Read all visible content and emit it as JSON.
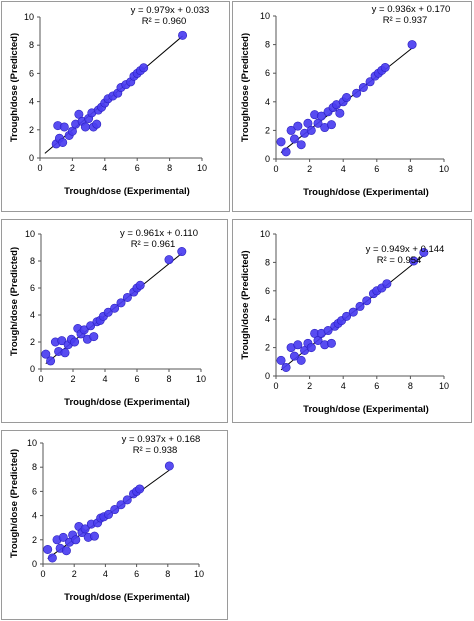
{
  "colors": {
    "point": "#4a3df0",
    "point_stroke": "#2a1fc0",
    "line": "#000000",
    "axis": "#555555"
  },
  "chart_data": [
    {
      "type": "scatter",
      "xlabel": "Trough/dose (Experimental)",
      "ylabel": "Trough/dose (Predicted)",
      "xlim": [
        0,
        10
      ],
      "ylim": [
        0,
        10
      ],
      "xticks": [
        "0",
        "2",
        "4",
        "6",
        "8",
        "10"
      ],
      "yticks": [
        "0",
        "2",
        "4",
        "6",
        "8",
        "10"
      ],
      "equation": "y = 0.979x + 0.033",
      "r2": "R² = 0.960",
      "fit": {
        "slope": 0.979,
        "intercept": 0.033
      },
      "points": [
        [
          1.0,
          1.0
        ],
        [
          1.2,
          1.4
        ],
        [
          1.1,
          2.3
        ],
        [
          1.5,
          2.2
        ],
        [
          1.4,
          1.1
        ],
        [
          1.8,
          1.6
        ],
        [
          2.0,
          1.9
        ],
        [
          2.2,
          2.4
        ],
        [
          2.4,
          3.1
        ],
        [
          2.6,
          2.6
        ],
        [
          2.8,
          2.2
        ],
        [
          3.0,
          2.8
        ],
        [
          3.2,
          3.2
        ],
        [
          3.3,
          2.2
        ],
        [
          3.5,
          2.4
        ],
        [
          3.6,
          3.4
        ],
        [
          3.8,
          3.6
        ],
        [
          4.0,
          3.9
        ],
        [
          4.2,
          4.2
        ],
        [
          4.5,
          4.4
        ],
        [
          4.8,
          4.6
        ],
        [
          5.0,
          5.0
        ],
        [
          5.3,
          5.2
        ],
        [
          5.6,
          5.4
        ],
        [
          5.8,
          5.8
        ],
        [
          6.0,
          6.0
        ],
        [
          6.2,
          6.2
        ],
        [
          6.4,
          6.4
        ],
        [
          8.8,
          8.7
        ]
      ]
    },
    {
      "type": "scatter",
      "xlabel": "Trough/dose (Experimental)",
      "ylabel": "Trough/dose (Predicted)",
      "xlim": [
        0,
        10
      ],
      "ylim": [
        0,
        10
      ],
      "xticks": [
        "0",
        "2",
        "4",
        "6",
        "8",
        "10"
      ],
      "yticks": [
        "0",
        "2",
        "4",
        "6",
        "8",
        "10"
      ],
      "equation": "y = 0.936x + 0.170",
      "r2": "R² = 0.937",
      "fit": {
        "slope": 0.936,
        "intercept": 0.17
      },
      "points": [
        [
          0.3,
          1.2
        ],
        [
          0.6,
          0.5
        ],
        [
          0.9,
          2.0
        ],
        [
          1.1,
          1.4
        ],
        [
          1.3,
          2.3
        ],
        [
          1.5,
          1.0
        ],
        [
          1.7,
          1.8
        ],
        [
          1.9,
          2.5
        ],
        [
          2.1,
          2.0
        ],
        [
          2.3,
          3.1
        ],
        [
          2.5,
          2.5
        ],
        [
          2.7,
          3.0
        ],
        [
          2.9,
          2.2
        ],
        [
          3.1,
          3.3
        ],
        [
          3.3,
          2.4
        ],
        [
          3.4,
          3.6
        ],
        [
          3.6,
          3.8
        ],
        [
          3.8,
          3.2
        ],
        [
          4.0,
          4.0
        ],
        [
          4.2,
          4.3
        ],
        [
          4.8,
          4.6
        ],
        [
          5.2,
          5.0
        ],
        [
          5.6,
          5.4
        ],
        [
          5.9,
          5.8
        ],
        [
          6.1,
          6.0
        ],
        [
          6.3,
          6.2
        ],
        [
          6.5,
          6.4
        ],
        [
          8.1,
          8.0
        ]
      ]
    },
    {
      "type": "scatter",
      "xlabel": "Trough/dose (Experimental)",
      "ylabel": "Trough/dose (Predicted)",
      "xlim": [
        0,
        10
      ],
      "ylim": [
        0,
        10
      ],
      "xticks": [
        "0",
        "2",
        "4",
        "6",
        "8",
        "10"
      ],
      "yticks": [
        "0",
        "2",
        "4",
        "6",
        "8",
        "10"
      ],
      "equation": "y = 0.961x + 0.110",
      "r2": "R² = 0.961",
      "fit": {
        "slope": 0.961,
        "intercept": 0.11
      },
      "points": [
        [
          0.3,
          1.1
        ],
        [
          0.6,
          0.6
        ],
        [
          0.9,
          2.0
        ],
        [
          1.1,
          1.3
        ],
        [
          1.3,
          2.1
        ],
        [
          1.5,
          1.2
        ],
        [
          1.7,
          1.8
        ],
        [
          1.9,
          2.2
        ],
        [
          2.1,
          2.0
        ],
        [
          2.3,
          3.0
        ],
        [
          2.5,
          2.6
        ],
        [
          2.7,
          2.9
        ],
        [
          2.9,
          2.2
        ],
        [
          3.1,
          3.2
        ],
        [
          3.3,
          2.4
        ],
        [
          3.5,
          3.5
        ],
        [
          3.7,
          3.6
        ],
        [
          3.9,
          3.9
        ],
        [
          4.2,
          4.2
        ],
        [
          4.6,
          4.5
        ],
        [
          5.0,
          4.9
        ],
        [
          5.4,
          5.3
        ],
        [
          5.8,
          5.7
        ],
        [
          6.0,
          6.0
        ],
        [
          6.2,
          6.2
        ],
        [
          8.0,
          8.1
        ],
        [
          8.8,
          8.7
        ]
      ]
    },
    {
      "type": "scatter",
      "xlabel": "Trough/dose (Experimental)",
      "ylabel": "Trough/dose (Predicted)",
      "xlim": [
        0,
        10
      ],
      "ylim": [
        0,
        10
      ],
      "xticks": [
        "0",
        "2",
        "4",
        "6",
        "8",
        "10"
      ],
      "yticks": [
        "0",
        "2",
        "4",
        "6",
        "8",
        "10"
      ],
      "equation": "y = 0.949x + 0.144",
      "r2": "R² = 0.954",
      "fit": {
        "slope": 0.949,
        "intercept": 0.144
      },
      "points": [
        [
          0.3,
          1.1
        ],
        [
          0.6,
          0.6
        ],
        [
          0.9,
          2.0
        ],
        [
          1.1,
          1.4
        ],
        [
          1.3,
          2.2
        ],
        [
          1.5,
          1.1
        ],
        [
          1.7,
          1.8
        ],
        [
          1.9,
          2.3
        ],
        [
          2.1,
          2.0
        ],
        [
          2.3,
          3.0
        ],
        [
          2.5,
          2.5
        ],
        [
          2.7,
          3.0
        ],
        [
          2.9,
          2.2
        ],
        [
          3.1,
          3.2
        ],
        [
          3.3,
          2.3
        ],
        [
          3.5,
          3.5
        ],
        [
          3.7,
          3.7
        ],
        [
          3.9,
          3.9
        ],
        [
          4.2,
          4.2
        ],
        [
          4.6,
          4.5
        ],
        [
          5.0,
          4.9
        ],
        [
          5.4,
          5.3
        ],
        [
          5.8,
          5.8
        ],
        [
          6.0,
          6.0
        ],
        [
          6.3,
          6.2
        ],
        [
          6.6,
          6.5
        ],
        [
          8.2,
          8.1
        ],
        [
          8.8,
          8.7
        ]
      ]
    },
    {
      "type": "scatter",
      "xlabel": "Trough/dose (Experimental)",
      "ylabel": "Trough/dose (Predicted)",
      "xlim": [
        0,
        10
      ],
      "ylim": [
        0,
        10
      ],
      "xticks": [
        "0",
        "2",
        "4",
        "6",
        "8",
        "10"
      ],
      "yticks": [
        "0",
        "2",
        "4",
        "6",
        "8",
        "10"
      ],
      "equation": "y = 0.937x + 0.168",
      "r2": "R² = 0.938",
      "fit": {
        "slope": 0.937,
        "intercept": 0.168
      },
      "points": [
        [
          0.3,
          1.2
        ],
        [
          0.6,
          0.5
        ],
        [
          0.9,
          2.0
        ],
        [
          1.1,
          1.3
        ],
        [
          1.3,
          2.2
        ],
        [
          1.5,
          1.1
        ],
        [
          1.7,
          1.8
        ],
        [
          1.9,
          2.4
        ],
        [
          2.1,
          2.0
        ],
        [
          2.3,
          3.1
        ],
        [
          2.5,
          2.6
        ],
        [
          2.7,
          2.9
        ],
        [
          2.9,
          2.2
        ],
        [
          3.1,
          3.3
        ],
        [
          3.3,
          2.3
        ],
        [
          3.5,
          3.4
        ],
        [
          3.7,
          3.8
        ],
        [
          3.9,
          3.9
        ],
        [
          4.2,
          4.1
        ],
        [
          4.6,
          4.5
        ],
        [
          5.0,
          4.9
        ],
        [
          5.4,
          5.3
        ],
        [
          5.8,
          5.8
        ],
        [
          6.0,
          6.0
        ],
        [
          6.2,
          6.2
        ],
        [
          8.1,
          8.1
        ]
      ]
    }
  ]
}
